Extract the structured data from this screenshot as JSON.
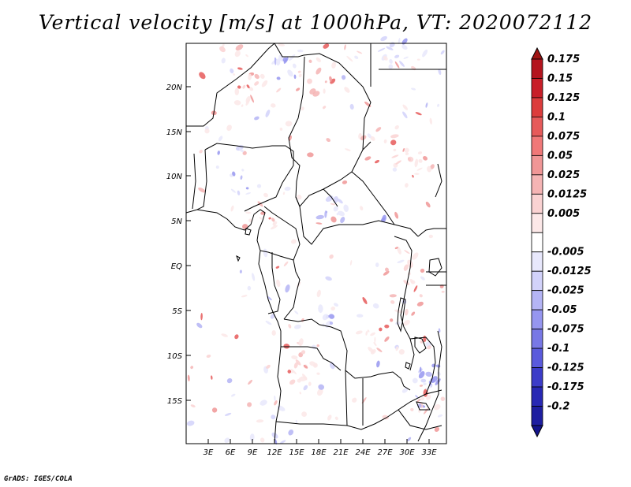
{
  "title": "Vertical velocity [m/s] at 1000hPa, VT: 2020072112",
  "credit": "GrADS: IGES/COLA",
  "map": {
    "lat_ticks": [
      "20N",
      "15N",
      "10N",
      "5N",
      "EQ",
      "5S",
      "10S",
      "15S"
    ],
    "lon_ticks": [
      "3E",
      "6E",
      "9E",
      "12E",
      "15E",
      "18E",
      "21E",
      "24E",
      "27E",
      "30E",
      "33E"
    ]
  },
  "colorbar": {
    "levels": [
      {
        "label": "0.175",
        "color": "#b4141e"
      },
      {
        "label": "0.15",
        "color": "#c81e28"
      },
      {
        "label": "0.125",
        "color": "#dc3c3c"
      },
      {
        "label": "0.1",
        "color": "#e65a5a"
      },
      {
        "label": "0.075",
        "color": "#f07878"
      },
      {
        "label": "0.05",
        "color": "#f09696"
      },
      {
        "label": "0.025",
        "color": "#f5b4b4"
      },
      {
        "label": "0.0125",
        "color": "#fad2d2"
      },
      {
        "label": "0.005",
        "color": "#fce8e8"
      },
      {
        "label": "",
        "color": "#ffffff"
      },
      {
        "label": "-0.005",
        "color": "#e8e8fc"
      },
      {
        "label": "-0.0125",
        "color": "#d2d2fa"
      },
      {
        "label": "-0.025",
        "color": "#b4b4f5"
      },
      {
        "label": "-0.05",
        "color": "#9696f0"
      },
      {
        "label": "-0.075",
        "color": "#7878e6"
      },
      {
        "label": "-0.1",
        "color": "#5a5adc"
      },
      {
        "label": "-0.125",
        "color": "#3c3cc8"
      },
      {
        "label": "-0.175",
        "color": "#2828b4"
      },
      {
        "label": "-0.2",
        "color": "#1e1ea0"
      }
    ],
    "top_color": "#a01414",
    "bottom_color": "#14148c"
  }
}
